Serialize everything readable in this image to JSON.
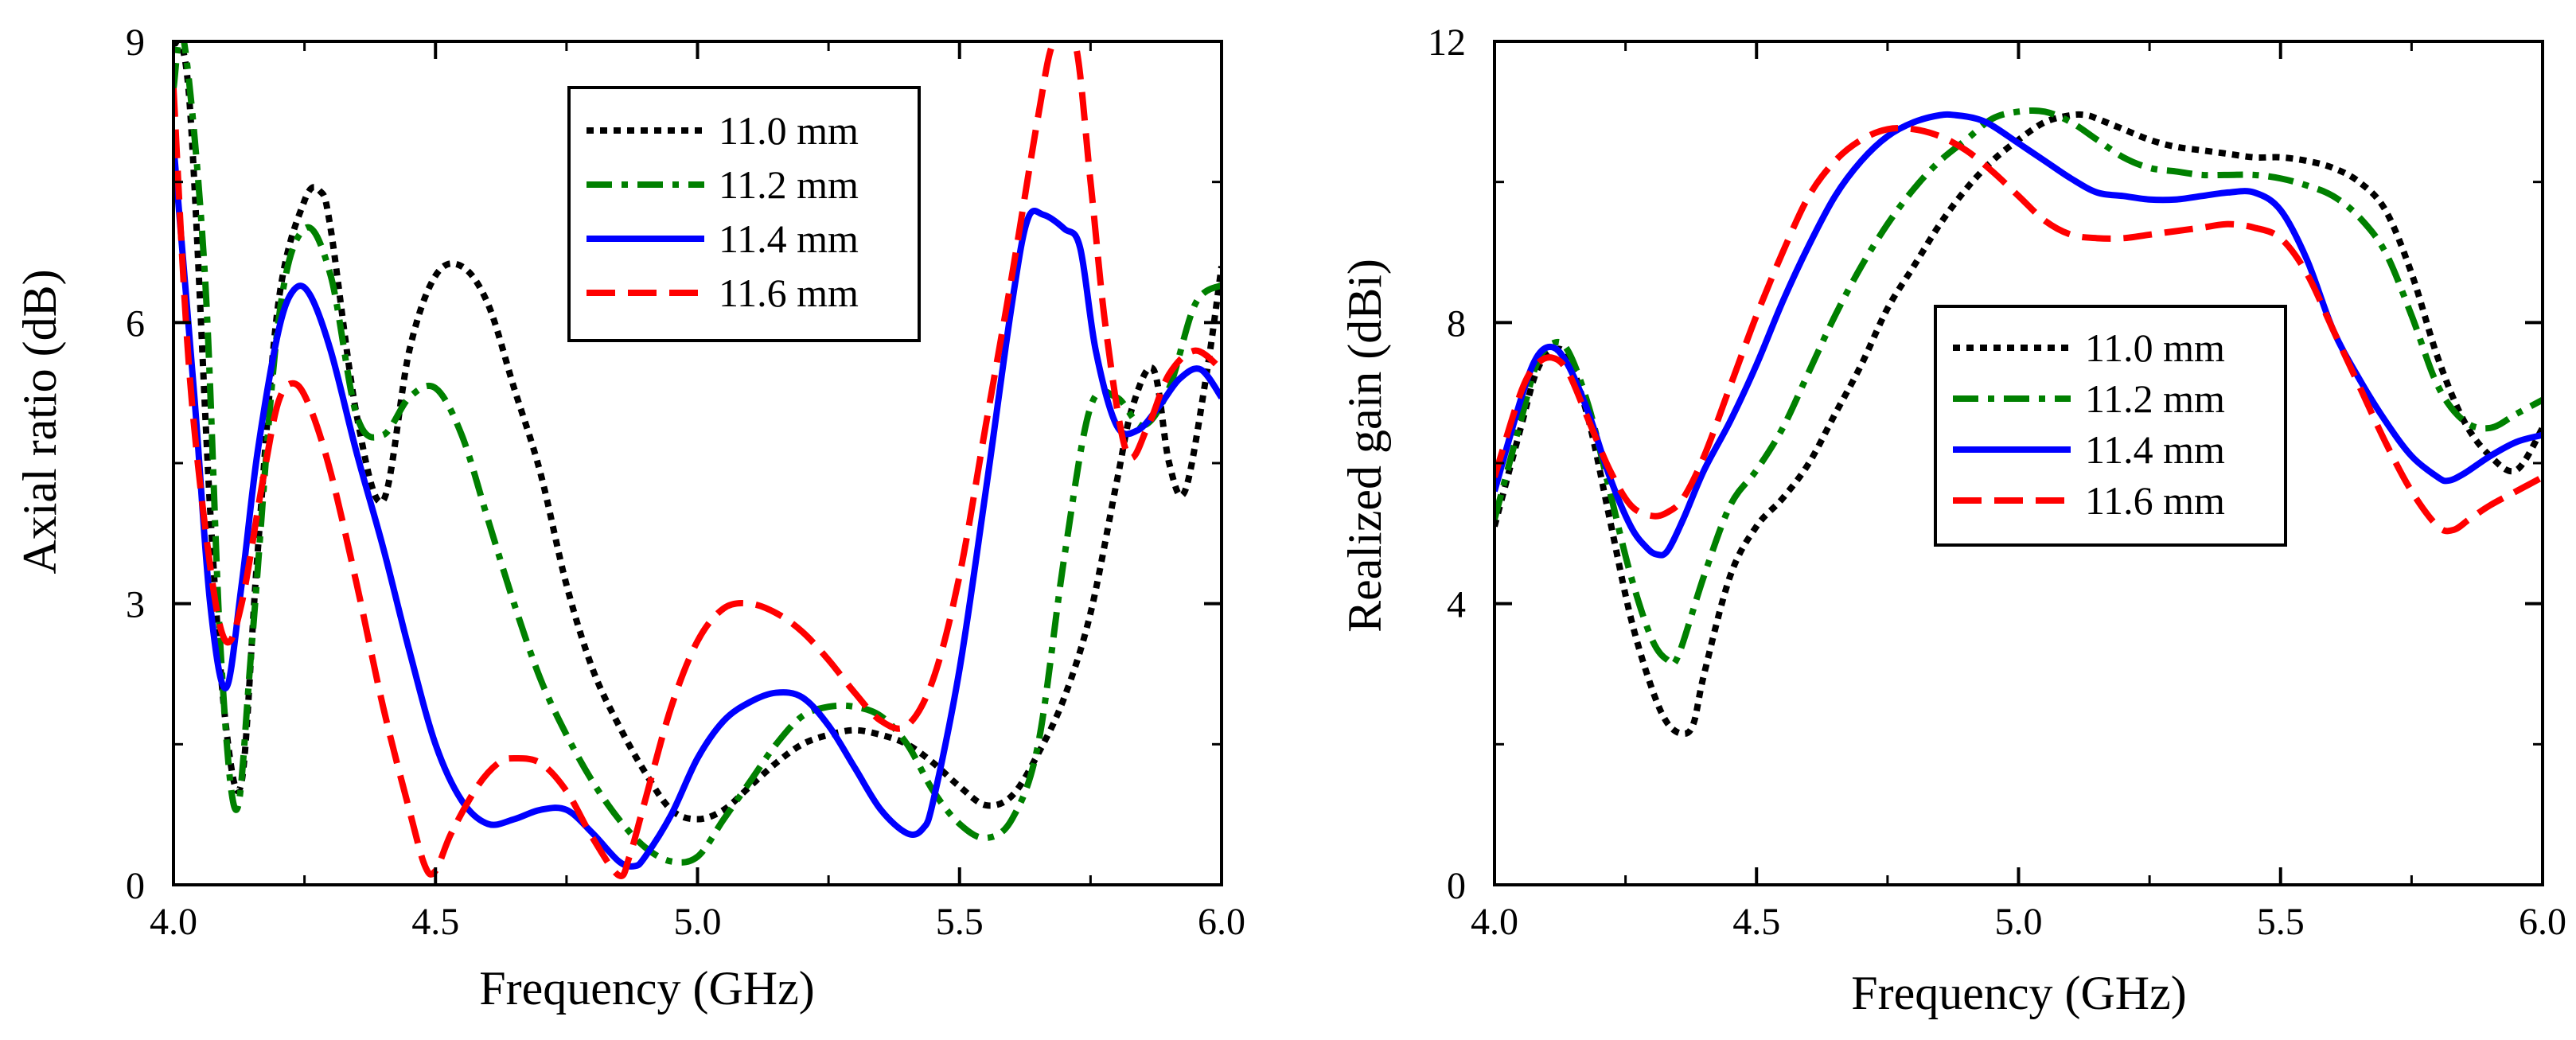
{
  "chart_data": [
    {
      "type": "line",
      "xlabel": "Frequency (GHz)",
      "ylabel": "Axial ratio (dB)",
      "xlim": [
        4.0,
        6.0
      ],
      "ylim": [
        0,
        9
      ],
      "xticks": [
        "4.0",
        "4.5",
        "5.0",
        "5.5",
        "6.0"
      ],
      "yticks": [
        "0",
        "3",
        "6",
        "9"
      ],
      "grid": false,
      "legend_position": "top-right",
      "series": [
        {
          "name": "11.0 mm",
          "color": "#000000",
          "dash": "dotted",
          "x": [
            4.0,
            4.03,
            4.07,
            4.1,
            4.13,
            4.16,
            4.2,
            4.25,
            4.28,
            4.3,
            4.35,
            4.4,
            4.45,
            4.5,
            4.55,
            4.6,
            4.65,
            4.7,
            4.75,
            4.8,
            4.85,
            4.9,
            4.95,
            5.0,
            5.05,
            5.1,
            5.15,
            5.2,
            5.25,
            5.3,
            5.35,
            5.4,
            5.45,
            5.5,
            5.55,
            5.6,
            5.65,
            5.7,
            5.75,
            5.8,
            5.83,
            5.87,
            5.9,
            5.93,
            5.97,
            6.0
          ],
          "y": [
            9.0,
            8.4,
            4.0,
            1.7,
            1.1,
            3.5,
            6.2,
            7.3,
            7.4,
            7.0,
            5.0,
            4.1,
            5.7,
            6.5,
            6.6,
            6.2,
            5.3,
            4.4,
            3.2,
            2.3,
            1.7,
            1.2,
            0.8,
            0.7,
            0.8,
            1.05,
            1.3,
            1.5,
            1.6,
            1.65,
            1.6,
            1.5,
            1.3,
            1.05,
            0.85,
            0.95,
            1.4,
            2.0,
            2.9,
            4.3,
            5.1,
            5.5,
            4.5,
            4.2,
            5.4,
            6.6
          ]
        },
        {
          "name": "11.2 mm",
          "color": "#008000",
          "dash": "dashdot",
          "x": [
            4.0,
            4.02,
            4.06,
            4.09,
            4.12,
            4.15,
            4.2,
            4.25,
            4.3,
            4.35,
            4.4,
            4.45,
            4.5,
            4.55,
            4.6,
            4.65,
            4.7,
            4.75,
            4.8,
            4.85,
            4.9,
            4.95,
            5.0,
            5.05,
            5.1,
            5.15,
            5.2,
            5.25,
            5.3,
            5.35,
            5.4,
            5.45,
            5.5,
            5.55,
            5.6,
            5.65,
            5.7,
            5.75,
            5.8,
            5.85,
            5.9,
            5.95,
            6.0
          ],
          "y": [
            8.5,
            9.0,
            6.5,
            2.5,
            0.8,
            2.6,
            6.0,
            7.0,
            6.5,
            5.0,
            4.8,
            5.2,
            5.3,
            4.8,
            3.9,
            3.0,
            2.2,
            1.6,
            1.1,
            0.7,
            0.4,
            0.25,
            0.3,
            0.7,
            1.1,
            1.5,
            1.8,
            1.9,
            1.9,
            1.8,
            1.5,
            1.0,
            0.65,
            0.5,
            0.7,
            1.5,
            3.5,
            5.1,
            5.2,
            4.9,
            5.3,
            6.2,
            6.4
          ]
        },
        {
          "name": "11.4 mm",
          "color": "#0000ff",
          "dash": "solid",
          "x": [
            4.0,
            4.04,
            4.07,
            4.1,
            4.13,
            4.16,
            4.2,
            4.23,
            4.26,
            4.3,
            4.35,
            4.4,
            4.45,
            4.5,
            4.55,
            4.6,
            4.65,
            4.7,
            4.75,
            4.8,
            4.85,
            4.88,
            4.9,
            4.95,
            5.0,
            5.05,
            5.1,
            5.15,
            5.2,
            5.25,
            5.3,
            5.35,
            5.4,
            5.43,
            5.45,
            5.5,
            5.55,
            5.6,
            5.63,
            5.66,
            5.7,
            5.73,
            5.76,
            5.8,
            5.84,
            5.88,
            5.92,
            5.96,
            6.0
          ],
          "y": [
            7.9,
            5.2,
            3.0,
            2.1,
            3.2,
            4.6,
            5.9,
            6.35,
            6.3,
            5.7,
            4.6,
            3.6,
            2.5,
            1.5,
            0.9,
            0.65,
            0.7,
            0.8,
            0.8,
            0.55,
            0.25,
            0.2,
            0.3,
            0.75,
            1.35,
            1.75,
            1.95,
            2.05,
            2.0,
            1.7,
            1.25,
            0.8,
            0.55,
            0.6,
            0.9,
            2.3,
            4.2,
            6.2,
            7.1,
            7.15,
            7.0,
            6.8,
            5.7,
            4.9,
            4.85,
            5.1,
            5.4,
            5.5,
            5.2
          ]
        },
        {
          "name": "11.6 mm",
          "color": "#ff0000",
          "dash": "dashed",
          "x": [
            4.0,
            4.03,
            4.07,
            4.1,
            4.13,
            4.17,
            4.2,
            4.23,
            4.26,
            4.3,
            4.35,
            4.4,
            4.45,
            4.48,
            4.5,
            4.53,
            4.58,
            4.62,
            4.65,
            4.7,
            4.75,
            4.8,
            4.85,
            4.87,
            4.9,
            4.95,
            5.0,
            5.05,
            5.1,
            5.15,
            5.2,
            5.25,
            5.3,
            5.35,
            5.4,
            5.45,
            5.5,
            5.55,
            5.6,
            5.65,
            5.68,
            5.72,
            5.75,
            5.78,
            5.82,
            5.86,
            5.9,
            5.95,
            6.0
          ],
          "y": [
            8.5,
            5.5,
            3.4,
            2.6,
            3.0,
            4.3,
            5.15,
            5.35,
            5.1,
            4.4,
            3.2,
            1.9,
            0.8,
            0.2,
            0.15,
            0.55,
            1.05,
            1.3,
            1.35,
            1.3,
            1.0,
            0.5,
            0.1,
            0.3,
            0.9,
            1.9,
            2.6,
            2.95,
            3.0,
            2.9,
            2.7,
            2.4,
            2.05,
            1.75,
            1.7,
            2.2,
            3.3,
            4.9,
            6.5,
            8.2,
            9.0,
            9.0,
            7.5,
            5.9,
            4.6,
            4.9,
            5.45,
            5.7,
            5.5
          ]
        }
      ]
    },
    {
      "type": "line",
      "xlabel": "Frequency (GHz)",
      "ylabel": "Realized gain (dBi)",
      "xlim": [
        4.0,
        6.0
      ],
      "ylim": [
        0,
        12
      ],
      "xticks": [
        "4.0",
        "4.5",
        "5.0",
        "5.5",
        "6.0"
      ],
      "yticks": [
        "0",
        "4",
        "8",
        "12"
      ],
      "grid": false,
      "legend_position": "center-right",
      "series": [
        {
          "name": "11.0 mm",
          "color": "#000000",
          "dash": "dotted",
          "x": [
            4.0,
            4.05,
            4.08,
            4.11,
            4.14,
            4.18,
            4.22,
            4.26,
            4.3,
            4.33,
            4.36,
            4.38,
            4.4,
            4.45,
            4.5,
            4.55,
            4.6,
            4.65,
            4.7,
            4.75,
            4.8,
            4.85,
            4.9,
            4.95,
            5.0,
            5.05,
            5.1,
            5.13,
            5.15,
            5.2,
            5.25,
            5.3,
            5.35,
            5.4,
            5.45,
            5.5,
            5.55,
            5.6,
            5.65,
            5.7,
            5.75,
            5.8,
            5.85,
            5.9,
            5.95,
            6.0
          ],
          "y": [
            5.1,
            6.5,
            7.3,
            7.6,
            7.5,
            6.6,
            5.2,
            3.8,
            2.8,
            2.3,
            2.15,
            2.3,
            3.0,
            4.4,
            5.1,
            5.5,
            6.0,
            6.7,
            7.4,
            8.2,
            8.8,
            9.4,
            9.9,
            10.3,
            10.6,
            10.85,
            10.95,
            10.95,
            10.9,
            10.75,
            10.6,
            10.5,
            10.45,
            10.4,
            10.35,
            10.35,
            10.3,
            10.2,
            10.0,
            9.6,
            8.7,
            7.5,
            6.6,
            6.1,
            5.9,
            6.5
          ]
        },
        {
          "name": "11.2 mm",
          "color": "#008000",
          "dash": "dashdot",
          "x": [
            4.0,
            4.05,
            4.08,
            4.11,
            4.14,
            4.18,
            4.22,
            4.26,
            4.3,
            4.33,
            4.35,
            4.4,
            4.45,
            4.5,
            4.55,
            4.6,
            4.65,
            4.7,
            4.75,
            4.8,
            4.85,
            4.9,
            4.95,
            5.0,
            5.05,
            5.1,
            5.15,
            5.2,
            5.25,
            5.3,
            5.35,
            5.4,
            5.45,
            5.5,
            5.55,
            5.6,
            5.65,
            5.7,
            5.75,
            5.8,
            5.85,
            5.9,
            5.95,
            6.0
          ],
          "y": [
            5.2,
            6.6,
            7.4,
            7.7,
            7.6,
            6.8,
            5.6,
            4.4,
            3.5,
            3.2,
            3.25,
            4.4,
            5.4,
            5.9,
            6.5,
            7.3,
            8.1,
            8.8,
            9.4,
            9.9,
            10.3,
            10.6,
            10.9,
            11.0,
            11.0,
            10.85,
            10.6,
            10.35,
            10.2,
            10.15,
            10.1,
            10.1,
            10.1,
            10.05,
            9.95,
            9.8,
            9.5,
            9.0,
            8.1,
            7.1,
            6.6,
            6.5,
            6.7,
            6.9
          ]
        },
        {
          "name": "11.4 mm",
          "color": "#0000ff",
          "dash": "solid",
          "x": [
            4.0,
            4.05,
            4.08,
            4.11,
            4.14,
            4.18,
            4.22,
            4.26,
            4.29,
            4.31,
            4.33,
            4.36,
            4.4,
            4.45,
            4.5,
            4.55,
            4.6,
            4.65,
            4.7,
            4.75,
            4.8,
            4.85,
            4.88,
            4.92,
            4.95,
            5.0,
            5.05,
            5.1,
            5.15,
            5.2,
            5.25,
            5.3,
            5.35,
            5.4,
            5.45,
            5.5,
            5.55,
            5.6,
            5.65,
            5.7,
            5.75,
            5.8,
            5.82,
            5.85,
            5.9,
            5.95,
            6.0
          ],
          "y": [
            5.6,
            6.9,
            7.5,
            7.65,
            7.4,
            6.7,
            5.8,
            5.1,
            4.8,
            4.7,
            4.75,
            5.2,
            5.9,
            6.6,
            7.4,
            8.3,
            9.1,
            9.8,
            10.3,
            10.65,
            10.85,
            10.95,
            10.95,
            10.9,
            10.8,
            10.55,
            10.3,
            10.05,
            9.85,
            9.8,
            9.75,
            9.75,
            9.8,
            9.85,
            9.85,
            9.6,
            8.9,
            7.9,
            7.2,
            6.6,
            6.1,
            5.8,
            5.75,
            5.85,
            6.1,
            6.3,
            6.4
          ]
        },
        {
          "name": "11.6 mm",
          "color": "#ff0000",
          "dash": "dashed",
          "x": [
            4.0,
            4.05,
            4.08,
            4.11,
            4.14,
            4.18,
            4.22,
            4.26,
            4.3,
            4.33,
            4.36,
            4.4,
            4.45,
            4.5,
            4.55,
            4.6,
            4.65,
            4.7,
            4.75,
            4.8,
            4.85,
            4.9,
            4.95,
            5.0,
            5.05,
            5.1,
            5.15,
            5.2,
            5.25,
            5.3,
            5.35,
            5.4,
            5.45,
            5.5,
            5.55,
            5.6,
            5.65,
            5.7,
            5.75,
            5.8,
            5.83,
            5.86,
            5.9,
            5.95,
            6.0
          ],
          "y": [
            5.8,
            7.0,
            7.4,
            7.5,
            7.3,
            6.6,
            5.9,
            5.4,
            5.25,
            5.3,
            5.5,
            6.1,
            7.1,
            8.1,
            9.0,
            9.8,
            10.3,
            10.6,
            10.75,
            10.75,
            10.65,
            10.45,
            10.15,
            9.8,
            9.45,
            9.25,
            9.2,
            9.2,
            9.25,
            9.3,
            9.35,
            9.4,
            9.35,
            9.2,
            8.7,
            7.9,
            7.1,
            6.3,
            5.6,
            5.1,
            5.05,
            5.2,
            5.4,
            5.6,
            5.8
          ]
        }
      ]
    }
  ]
}
